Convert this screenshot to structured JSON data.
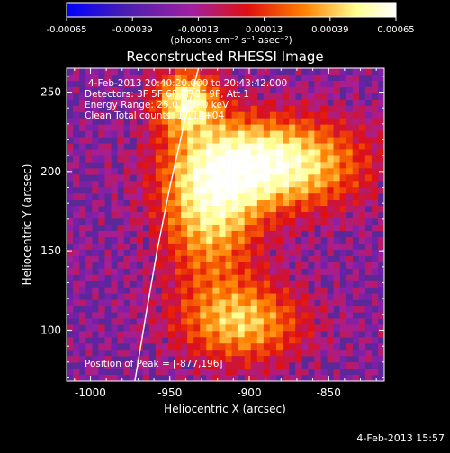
{
  "colorbar": {
    "ticks": [
      -0.00065,
      -0.00039,
      -0.00013,
      0.00013,
      0.00039,
      0.00065
    ],
    "tick_labels": [
      "-0.00065",
      "-0.00039",
      "-0.00013",
      "0.00013",
      "0.00039",
      "0.00065"
    ],
    "label": "(photons cm⁻² s⁻¹ asec⁻²)",
    "range": [
      -0.00065,
      0.00065
    ],
    "colors": [
      "#0000ff",
      "#4a1fb0",
      "#a020a0",
      "#e01010",
      "#ff8000",
      "#ffff90",
      "#ffffff"
    ]
  },
  "chart_data": {
    "type": "heatmap",
    "title": "Reconstructed RHESSI Image",
    "xlabel": "Heliocentric X (arcsec)",
    "ylabel": "Heliocentric Y (arcsec)",
    "xlim": [
      -1015,
      -815
    ],
    "ylim": [
      68,
      265
    ],
    "x_ticks": [
      -1000,
      -950,
      -900,
      -850
    ],
    "x_tick_labels": [
      "-1000",
      "-950",
      "-900",
      "-850"
    ],
    "y_ticks": [
      100,
      150,
      200,
      250
    ],
    "y_tick_labels": [
      "100",
      "150",
      "200",
      "250"
    ],
    "annotations": [
      "4-Feb-2013 20:40:20.000 to 20:43:42.000",
      "Detectors: 3F 5F 6F 7F 8F 9F, Att 1",
      "Energy Range: 25.0 - 50.0 keV",
      "Clean     Total counts: 1.11E+04"
    ],
    "peak_label": "Position of Peak = [-877,196]",
    "peak": [
      -877,
      196
    ],
    "limb": [
      [
        -972,
        68
      ],
      [
        -965,
        110
      ],
      [
        -958,
        150
      ],
      [
        -950,
        190
      ],
      [
        -941,
        230
      ],
      [
        -932,
        265
      ]
    ],
    "sources": [
      {
        "x": -885,
        "y": 205,
        "sx": 38,
        "sy": 20,
        "amp": 1.0
      },
      {
        "x": -925,
        "y": 175,
        "sx": 22,
        "sy": 32,
        "amp": 0.75
      },
      {
        "x": -940,
        "y": 245,
        "sx": 14,
        "sy": 14,
        "amp": 0.85
      },
      {
        "x": -905,
        "y": 105,
        "sx": 28,
        "sy": 18,
        "amp": 0.7
      }
    ]
  },
  "footer": "4-Feb-2013 15:57"
}
